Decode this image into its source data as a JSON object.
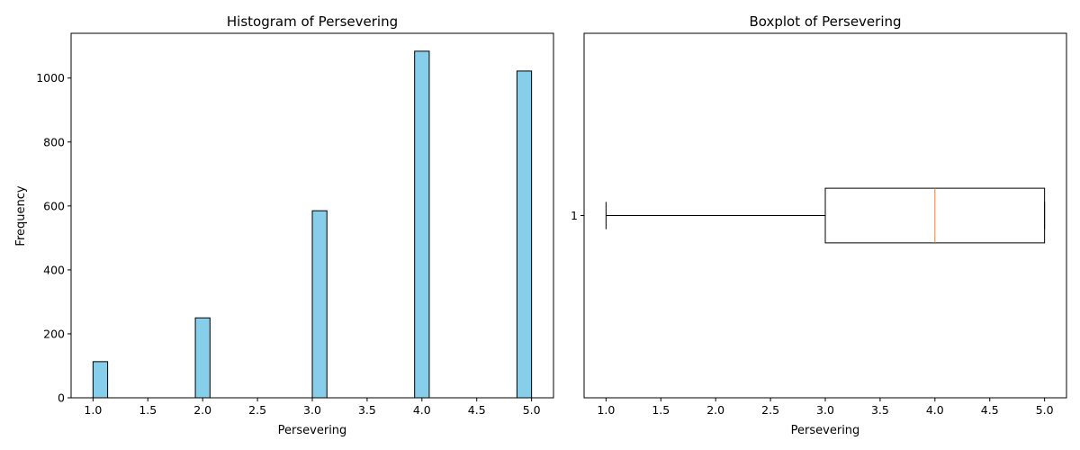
{
  "chart_data": [
    {
      "type": "bar",
      "title": "Histogram of Persevering",
      "xlabel": "Persevering",
      "ylabel": "Frequency",
      "xlim": [
        0.8,
        5.2
      ],
      "ylim": [
        0,
        1140
      ],
      "xticks": [
        "1.0",
        "1.5",
        "2.0",
        "2.5",
        "3.0",
        "3.5",
        "4.0",
        "4.5",
        "5.0"
      ],
      "yticks": [
        "0",
        "200",
        "400",
        "600",
        "800",
        "1000"
      ],
      "bar_color": "#87ceeb",
      "edge_color": "#000000",
      "bars": [
        {
          "x_start": 1.0,
          "x_end": 1.1333,
          "value": 113
        },
        {
          "x_start": 1.9333,
          "x_end": 2.0667,
          "value": 250
        },
        {
          "x_start": 3.0,
          "x_end": 3.1333,
          "value": 585
        },
        {
          "x_start": 3.9333,
          "x_end": 4.0667,
          "value": 1084
        },
        {
          "x_start": 4.8667,
          "x_end": 5.0,
          "value": 1022
        }
      ]
    },
    {
      "type": "boxplot",
      "title": "Boxplot of Persevering",
      "xlabel": "Persevering",
      "xlim": [
        0.8,
        5.2
      ],
      "xticks": [
        "1.0",
        "1.5",
        "2.0",
        "2.5",
        "3.0",
        "3.5",
        "4.0",
        "4.5",
        "5.0"
      ],
      "yticks": [
        "1"
      ],
      "median_color": "#ff7f0e",
      "box": {
        "whisker_low": 1.0,
        "q1": 3.0,
        "median": 4.0,
        "q3": 5.0,
        "whisker_high": 5.0
      }
    }
  ]
}
